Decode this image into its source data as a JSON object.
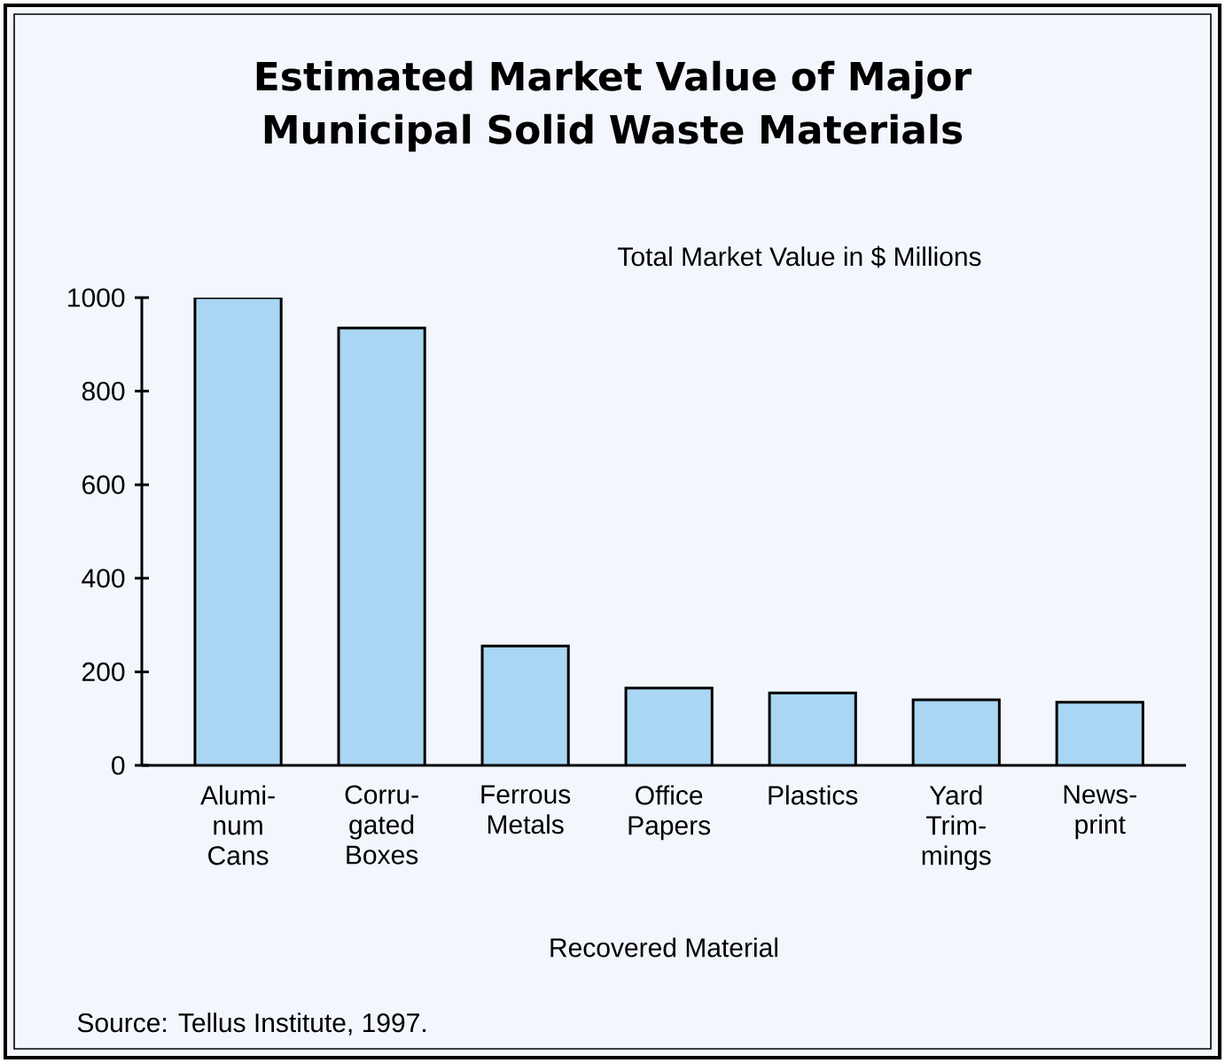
{
  "chart_data": {
    "type": "bar",
    "title": "Estimated Market Value of Major Municipal Solid Waste Materials",
    "xlabel": "Recovered Material",
    "categories": [
      "Alumi- num Cans",
      "Corru- gated Boxes",
      "Ferrous Metals",
      "Office Papers",
      "Plastics",
      "Yard Trim- mings",
      "News- print"
    ],
    "values": [
      1000,
      935,
      255,
      165,
      155,
      140,
      135
    ],
    "color": "#a9d6f3",
    "ylim": [
      0,
      1000
    ],
    "yticks": [
      0,
      200,
      400,
      600,
      800,
      1000
    ],
    "annotations": [
      "Total Market Value in $ Millions",
      "Source: Tellus Institute, 1997."
    ]
  }
}
